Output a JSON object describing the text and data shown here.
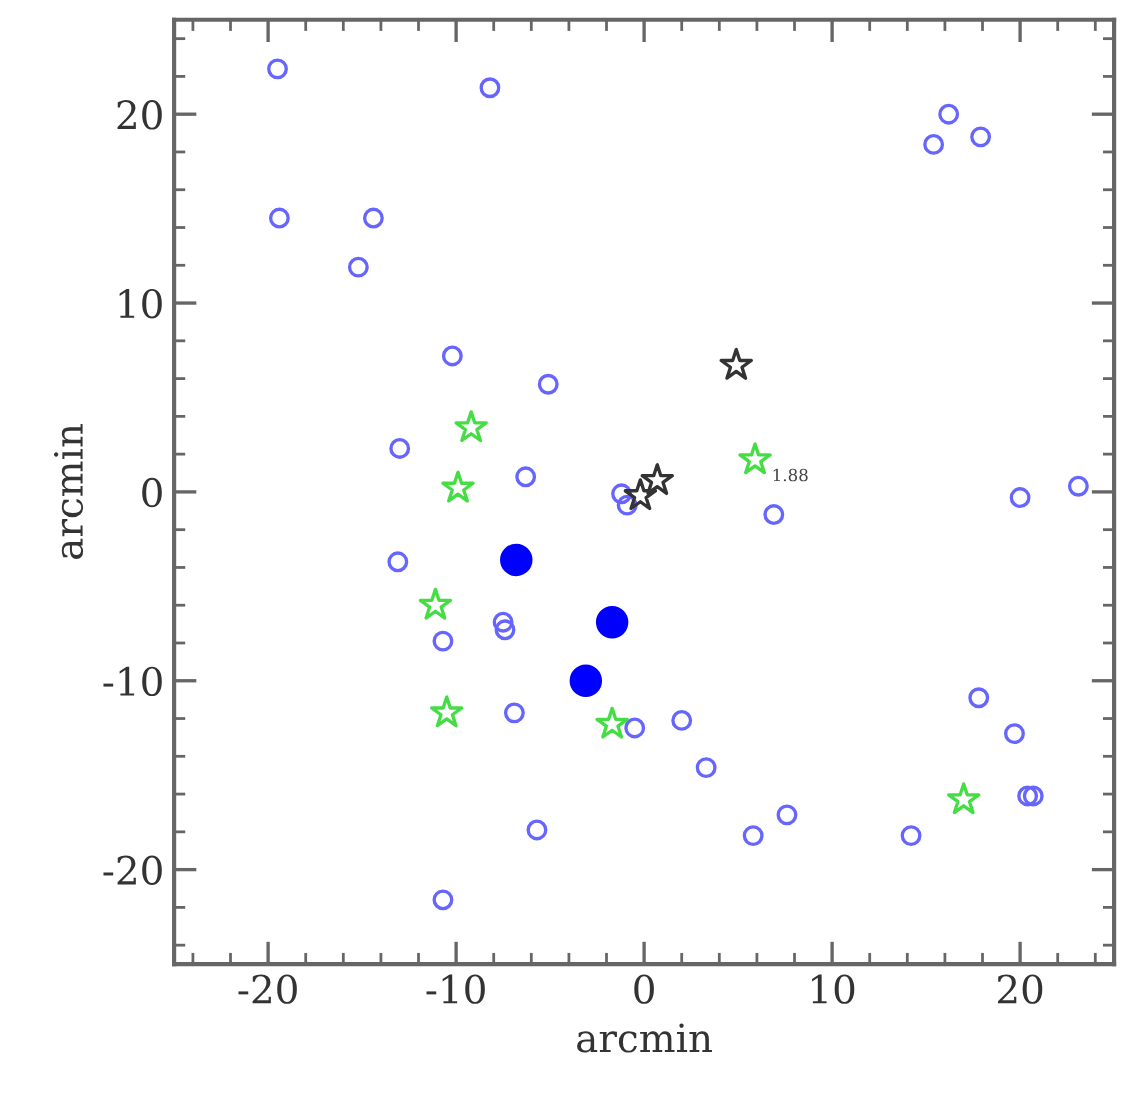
{
  "chart_data": {
    "type": "scatter",
    "xlabel": "arcmin",
    "ylabel": "arcmin",
    "xlim": [
      -25,
      25
    ],
    "ylim": [
      -25,
      25
    ],
    "xticks": [
      {
        "value": -24,
        "label": null
      },
      {
        "value": -22,
        "label": null
      },
      -20,
      {
        "value": -18,
        "label": null
      },
      {
        "value": -16,
        "label": null
      },
      {
        "value": -14,
        "label": null
      },
      {
        "value": -12,
        "label": null
      },
      -10,
      {
        "value": -8,
        "label": null
      },
      {
        "value": -6,
        "label": null
      },
      {
        "value": -4,
        "label": null
      },
      {
        "value": -2,
        "label": null
      },
      0,
      {
        "value": 2,
        "label": null
      },
      {
        "value": 4,
        "label": null
      },
      {
        "value": 6,
        "label": null
      },
      {
        "value": 8,
        "label": null
      },
      10,
      {
        "value": 12,
        "label": null
      },
      {
        "value": 14,
        "label": null
      },
      {
        "value": 16,
        "label": null
      },
      {
        "value": 18,
        "label": null
      },
      20,
      {
        "value": 22,
        "label": null
      },
      {
        "value": 24,
        "label": null
      }
    ],
    "yticks": [
      {
        "value": -24,
        "label": null
      },
      {
        "value": -22,
        "label": null
      },
      -20,
      {
        "value": -18,
        "label": null
      },
      {
        "value": -16,
        "label": null
      },
      {
        "value": -14,
        "label": null
      },
      {
        "value": -12,
        "label": null
      },
      -10,
      {
        "value": -8,
        "label": null
      },
      {
        "value": -6,
        "label": null
      },
      {
        "value": -4,
        "label": null
      },
      {
        "value": -2,
        "label": null
      },
      0,
      {
        "value": 2,
        "label": null
      },
      {
        "value": 4,
        "label": null
      },
      {
        "value": 6,
        "label": null
      },
      {
        "value": 8,
        "label": null
      },
      10,
      {
        "value": 12,
        "label": null
      },
      {
        "value": 14,
        "label": null
      },
      {
        "value": 16,
        "label": null
      },
      {
        "value": 18,
        "label": null
      },
      20,
      {
        "value": 22,
        "label": null
      },
      {
        "value": 24,
        "label": null
      }
    ],
    "grid": false,
    "legend": false,
    "series": [
      {
        "color": "#6666ff",
        "marker": "circle",
        "x": [
          -19.5,
          -8.2,
          -19.4,
          -14.4,
          -15.2,
          -10.2,
          -5.1,
          -13.0,
          -6.3,
          -1.2,
          -0.9,
          6.9,
          20.0,
          23.1,
          16.2,
          15.4,
          17.9,
          -13.1,
          -10.7,
          -7.5,
          -7.4,
          -6.9,
          -0.5,
          2.0,
          3.3,
          -5.7,
          -10.7,
          5.8,
          7.6,
          14.2,
          17.8,
          19.7,
          20.7,
          20.4
        ],
        "values": [
          22.4,
          21.4,
          14.5,
          14.5,
          11.9,
          7.2,
          5.7,
          2.3,
          0.8,
          -0.1,
          -0.7,
          -1.2,
          -0.3,
          0.3,
          20.0,
          18.4,
          18.8,
          -3.7,
          -7.9,
          -6.9,
          -7.3,
          -11.7,
          -12.5,
          -12.1,
          -14.6,
          -17.9,
          -21.6,
          -18.2,
          -17.1,
          -18.2,
          -10.9,
          -12.8,
          -16.1,
          -16.1
        ]
      },
      {
        "color": "#0000ff",
        "marker": "circle",
        "x": [
          -6.8,
          -1.7,
          -3.1
        ],
        "values": [
          -3.6,
          -6.9,
          -10.0
        ]
      },
      {
        "color": "#44dd44",
        "marker": "star",
        "x": [
          -9.2,
          -9.9,
          -11.1,
          -10.5,
          -1.7,
          5.9,
          17.0
        ],
        "values": [
          3.4,
          0.2,
          -6.0,
          -11.7,
          -12.3,
          1.7,
          -16.3
        ]
      },
      {
        "color": "#333333",
        "marker": "star",
        "x": [
          4.9,
          0.7,
          -0.2
        ],
        "values": [
          6.7,
          0.6,
          -0.2
        ]
      }
    ],
    "annotations": [
      {
        "text": "1.88",
        "x": 5.9,
        "y": 1.7
      }
    ]
  }
}
